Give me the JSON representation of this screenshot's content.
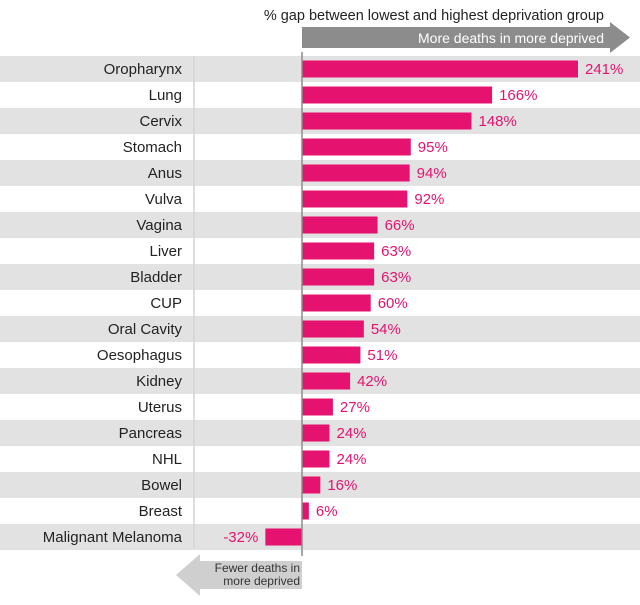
{
  "chart_data": {
    "type": "bar",
    "orientation": "horizontal",
    "title": "% gap between lowest and highest deprivation group",
    "positive_direction_label": "More deaths in more deprived",
    "negative_direction_label_lines": [
      "Fewer deaths in",
      "more deprived"
    ],
    "categories": [
      "Oropharynx",
      "Lung",
      "Cervix",
      "Stomach",
      "Anus",
      "Vulva",
      "Vagina",
      "Liver",
      "Bladder",
      "CUP",
      "Oral Cavity",
      "Oesophagus",
      "Kidney",
      "Uterus",
      "Pancreas",
      "NHL",
      "Bowel",
      "Breast",
      "Malignant Melanoma"
    ],
    "values": [
      241,
      166,
      148,
      95,
      94,
      92,
      66,
      63,
      63,
      60,
      54,
      51,
      42,
      27,
      24,
      24,
      16,
      6,
      -32
    ],
    "value_suffix": "%",
    "xlim": [
      -32,
      241
    ],
    "grid": false,
    "row_banding": true,
    "colors": {
      "bar": "#e5136f",
      "value_label": "#e5136f",
      "band": "#e2e2e2",
      "arrow": "#8c8c8c",
      "arrow_light": "#cfcfcf"
    }
  }
}
